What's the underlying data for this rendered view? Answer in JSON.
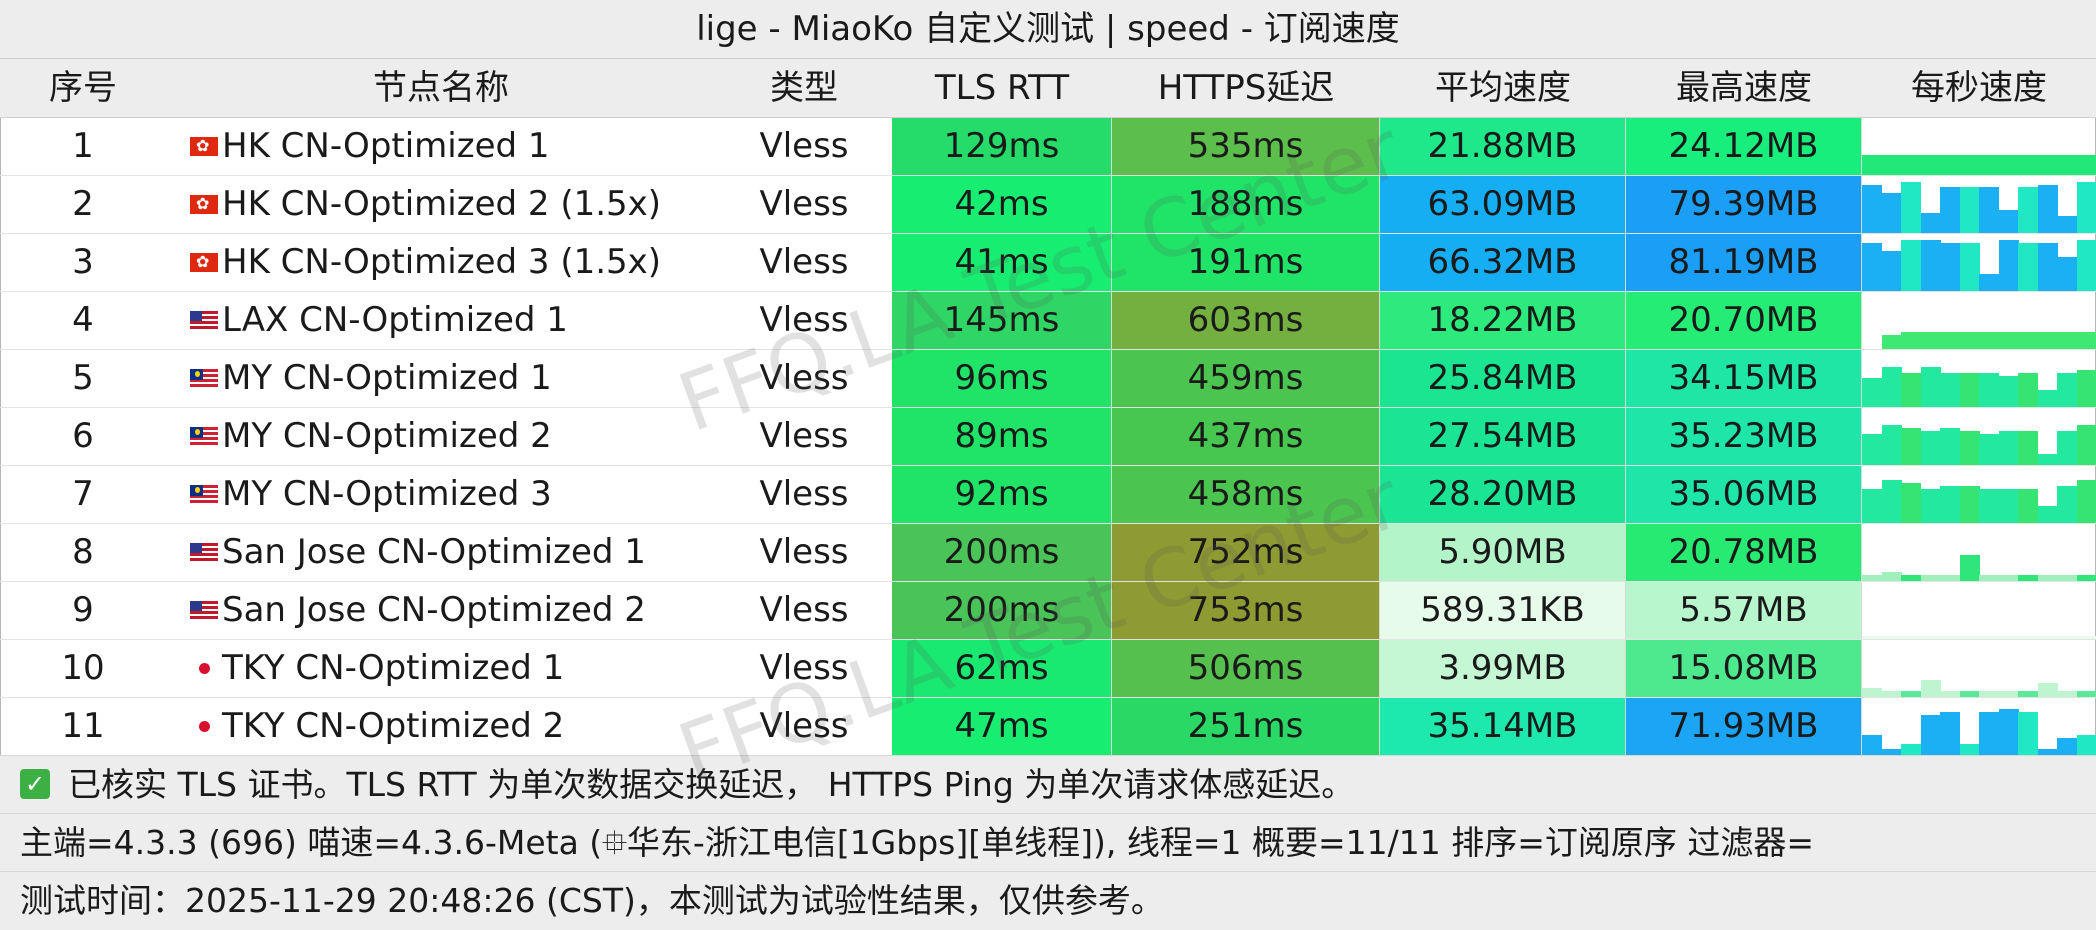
{
  "title": "lige - MiaoKo 自定义测试 | speed - 订阅速度",
  "headers": [
    "序号",
    "节点名称",
    "类型",
    "TLS RTT",
    "HTTPS延迟",
    "平均速度",
    "最高速度",
    "每秒速度"
  ],
  "rows": [
    {
      "idx": "1",
      "flag": "hk",
      "name": "HK CN-Optimized 1",
      "type": "Vless",
      "tls": "129ms",
      "https": "535ms",
      "avg": "21.88MB",
      "max": "24.12MB",
      "tls_color": "#25dc6b",
      "https_color": "#5cbf4c",
      "avg_color": "#1ee889",
      "max_color": "#18ee7c",
      "spark_colors": [
        "#22e87a"
      ],
      "spark": [
        0.35,
        0.35,
        0.35,
        0.35,
        0.35,
        0.35,
        0.35,
        0.35,
        0.35,
        0.35,
        0.35,
        0.35
      ]
    },
    {
      "idx": "2",
      "flag": "hk",
      "name": "HK CN-Optimized 2 (1.5x)",
      "type": "Vless",
      "tls": "42ms",
      "https": "188ms",
      "avg": "63.09MB",
      "max": "79.39MB",
      "tls_color": "#17ee71",
      "https_color": "#1fe467",
      "avg_color": "#16aef2",
      "max_color": "#1a9ef6",
      "spark_colors": [
        "#1ab0f3",
        "#21e8c4"
      ],
      "spark": [
        0.85,
        0.7,
        0.9,
        0.35,
        0.8,
        0.8,
        0.8,
        0.4,
        0.8,
        0.85,
        0.3,
        0.9
      ]
    },
    {
      "idx": "3",
      "flag": "hk",
      "name": "HK CN-Optimized 3 (1.5x)",
      "type": "Vless",
      "tls": "41ms",
      "https": "191ms",
      "avg": "66.32MB",
      "max": "81.19MB",
      "tls_color": "#17ee71",
      "https_color": "#1fe467",
      "avg_color": "#16aef2",
      "max_color": "#1a9ef6",
      "spark_colors": [
        "#1ab0f3",
        "#21e8c4"
      ],
      "spark": [
        0.85,
        0.7,
        0.9,
        0.9,
        0.85,
        0.85,
        0.3,
        0.9,
        0.85,
        0.85,
        0.6,
        0.9
      ]
    },
    {
      "idx": "4",
      "flag": "us",
      "name": "LAX CN-Optimized 1",
      "type": "Vless",
      "tls": "145ms",
      "https": "603ms",
      "avg": "18.22MB",
      "max": "20.70MB",
      "tls_color": "#2fd565",
      "https_color": "#74b040",
      "avg_color": "#2cea7c",
      "max_color": "#24ec74",
      "spark_colors": [
        "#3ee872"
      ],
      "spark": [
        0.0,
        0.25,
        0.3,
        0.3,
        0.3,
        0.3,
        0.3,
        0.3,
        0.3,
        0.3,
        0.3,
        0.3
      ]
    },
    {
      "idx": "5",
      "flag": "my",
      "name": "MY CN-Optimized 1",
      "type": "Vless",
      "tls": "96ms",
      "https": "459ms",
      "avg": "25.84MB",
      "max": "34.15MB",
      "tls_color": "#1fe468",
      "https_color": "#4cc550",
      "avg_color": "#1ae590",
      "max_color": "#1ee6a5",
      "spark_colors": [
        "#22e8a0",
        "#35e472"
      ],
      "spark": [
        0.5,
        0.7,
        0.6,
        0.7,
        0.6,
        0.6,
        0.6,
        0.55,
        0.6,
        0.3,
        0.6,
        0.65
      ]
    },
    {
      "idx": "6",
      "flag": "my",
      "name": "MY CN-Optimized 2",
      "type": "Vless",
      "tls": "89ms",
      "https": "437ms",
      "avg": "27.54MB",
      "max": "35.23MB",
      "tls_color": "#1fe468",
      "https_color": "#48c750",
      "avg_color": "#1ae594",
      "max_color": "#1ee6a9",
      "spark_colors": [
        "#22e8a0",
        "#35e472"
      ],
      "spark": [
        0.55,
        0.7,
        0.65,
        0.6,
        0.65,
        0.6,
        0.55,
        0.6,
        0.6,
        0.2,
        0.6,
        0.7
      ]
    },
    {
      "idx": "7",
      "flag": "my",
      "name": "MY CN-Optimized 3",
      "type": "Vless",
      "tls": "92ms",
      "https": "458ms",
      "avg": "28.20MB",
      "max": "35.06MB",
      "tls_color": "#1fe468",
      "https_color": "#4cc550",
      "avg_color": "#1ae594",
      "max_color": "#1ee6a9",
      "spark_colors": [
        "#22e8a0",
        "#35e472"
      ],
      "spark": [
        0.6,
        0.75,
        0.7,
        0.6,
        0.65,
        0.65,
        0.6,
        0.6,
        0.6,
        0.3,
        0.65,
        0.75
      ]
    },
    {
      "idx": "8",
      "flag": "us",
      "name": "San Jose CN-Optimized 1",
      "type": "Vless",
      "tls": "200ms",
      "https": "752ms",
      "avg": "5.90MB",
      "max": "20.78MB",
      "tls_color": "#4ac358",
      "https_color": "#8e9a32",
      "avg_color": "#b3f5c9",
      "max_color": "#26ea72",
      "spark_colors": [
        "#9ff0bb",
        "#2ee67a"
      ],
      "spark": [
        0.1,
        0.15,
        0.1,
        0.1,
        0.1,
        0.45,
        0.1,
        0.1,
        0.1,
        0.1,
        0.1,
        0.1
      ]
    },
    {
      "idx": "9",
      "flag": "us",
      "name": "San Jose CN-Optimized 2",
      "type": "Vless",
      "tls": "200ms",
      "https": "753ms",
      "avg": "589.31KB",
      "max": "5.57MB",
      "tls_color": "#4ac358",
      "https_color": "#8e9a32",
      "avg_color": "#e6fbea",
      "max_color": "#b8f6cd",
      "spark_colors": [
        "#e9fbee"
      ],
      "spark": [
        0.05,
        0.05,
        0.05,
        0.05,
        0.05,
        0.05,
        0.05,
        0.05,
        0.05,
        0.05,
        0.05,
        0.05
      ]
    },
    {
      "idx": "10",
      "flag": "jp",
      "name": "TKY CN-Optimized 1",
      "type": "Vless",
      "tls": "62ms",
      "https": "506ms",
      "avg": "3.99MB",
      "max": "15.08MB",
      "tls_color": "#19e970",
      "https_color": "#56c04e",
      "avg_color": "#c5f7d5",
      "max_color": "#4ee98f",
      "spark_colors": [
        "#bff4d0",
        "#5ae99a"
      ],
      "spark": [
        0.15,
        0.1,
        0.1,
        0.3,
        0.1,
        0.1,
        0.1,
        0.1,
        0.1,
        0.25,
        0.1,
        0.1
      ]
    },
    {
      "idx": "11",
      "flag": "jp",
      "name": "TKY CN-Optimized 2",
      "type": "Vless",
      "tls": "47ms",
      "https": "251ms",
      "avg": "35.14MB",
      "max": "71.93MB",
      "tls_color": "#17ee71",
      "https_color": "#2ad865",
      "avg_color": "#1ee9ac",
      "max_color": "#1ba5f4",
      "spark_colors": [
        "#1ab0f3",
        "#21e8c4"
      ],
      "spark": [
        0.35,
        0.1,
        0.2,
        0.7,
        0.75,
        0.2,
        0.75,
        0.8,
        0.75,
        0.1,
        0.3,
        0.35
      ]
    }
  ],
  "footer": {
    "check_icon": "check-icon",
    "note": "已核实 TLS 证书。TLS RTT 为单次数据交换延迟， HTTPS Ping 为单次请求体感延迟。",
    "info": "主端=4.3.3 (696) 喵速=4.3.6-Meta (⯐华东-浙江电信[1Gbps][单线程]), 线程=1 概要=11/11 排序=订阅原序 过滤器=",
    "time": "测试时间：2025-11-29 20:48:26 (CST)，本测试为试验性结果，仅供参考。"
  },
  "watermark_text": "FFQ.LA Test Center",
  "colors": {
    "header_bg": "#ededed",
    "border": "#cfcfcf"
  }
}
